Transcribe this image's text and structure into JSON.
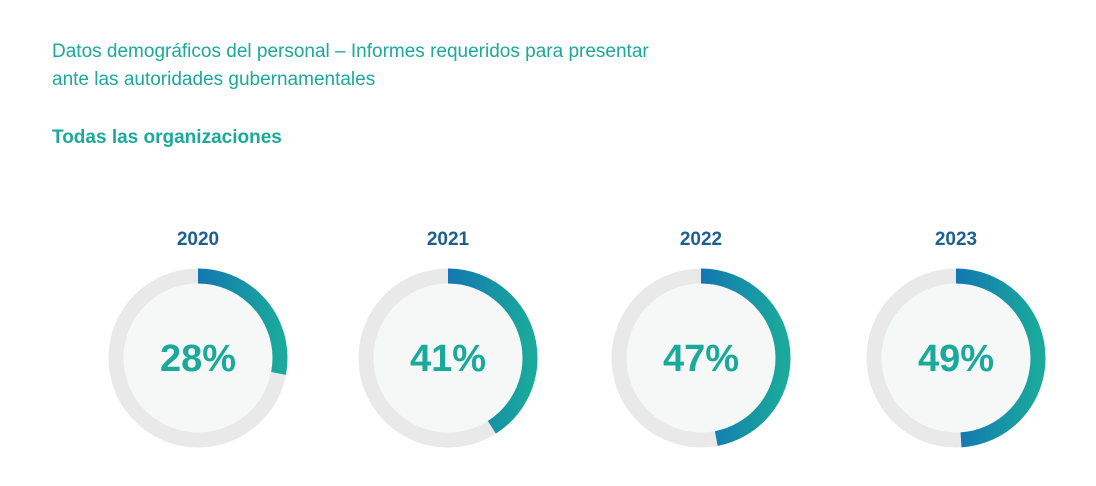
{
  "header": {
    "title_line1": "Datos demográficos del personal – Informes requeridos para presentar",
    "title_line2": "ante las autoridades gubernamentales",
    "subtitle": "Todas las organizaciones"
  },
  "colors": {
    "text_teal": "#1aa99b",
    "year_blue": "#1d5f8f",
    "track": "#e9e9e9",
    "inner_fill": "#f6f8f7",
    "arc_start": "#1aa99b",
    "arc_end": "#1272b5"
  },
  "chart_data": {
    "type": "donut",
    "title": "",
    "items": [
      {
        "year": "2020",
        "value": 28,
        "label": "28%"
      },
      {
        "year": "2021",
        "value": 41,
        "label": "41%"
      },
      {
        "year": "2022",
        "value": 47,
        "label": "47%"
      },
      {
        "year": "2023",
        "value": 49,
        "label": "49%"
      }
    ]
  }
}
